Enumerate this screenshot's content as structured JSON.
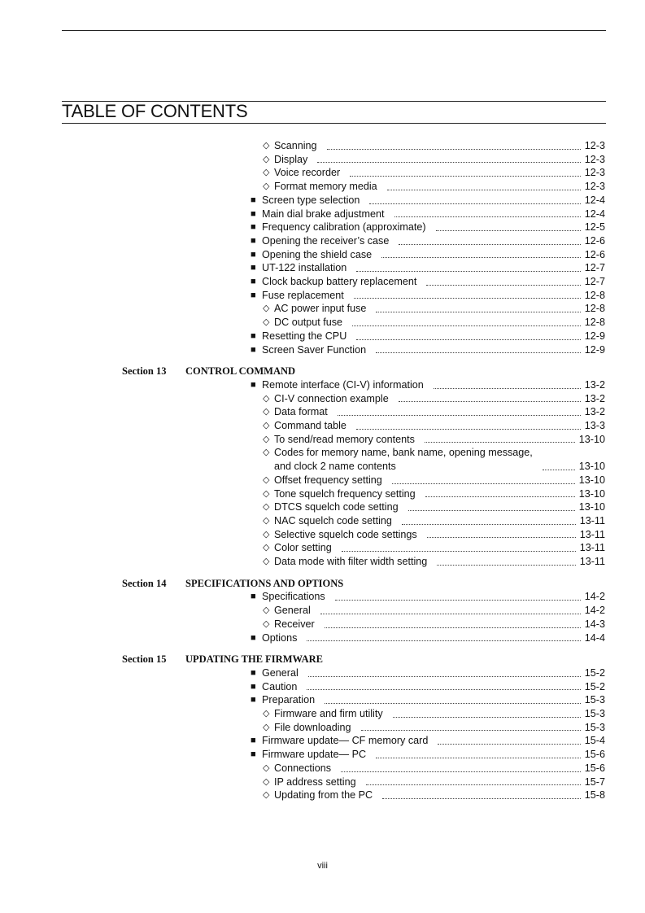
{
  "header": {
    "title": "TABLE OF CONTENTS"
  },
  "groups": [
    {
      "entries": [
        {
          "bullet": "◇",
          "text": "Scanning",
          "page": "12-3"
        },
        {
          "bullet": "◇",
          "text": "Display",
          "page": "12-3"
        },
        {
          "bullet": "◇",
          "text": "Voice recorder",
          "page": "12-3"
        },
        {
          "bullet": "◇",
          "text": "Format memory media",
          "page": "12-3"
        },
        {
          "bullet": "■",
          "text": "Screen type selection",
          "page": "12-4"
        },
        {
          "bullet": "■",
          "text": "Main dial brake adjustment",
          "page": "12-4"
        },
        {
          "bullet": "■",
          "text": "Frequency calibration (approximate)",
          "page": "12-5"
        },
        {
          "bullet": "■",
          "text": "Opening the receiver’s case",
          "page": "12-6"
        },
        {
          "bullet": "■",
          "text": "Opening the shield case",
          "page": "12-6"
        },
        {
          "bullet": "■",
          "text": "UT-122 installation",
          "page": "12-7"
        },
        {
          "bullet": "■",
          "text": "Clock backup battery replacement",
          "page": "12-7"
        },
        {
          "bullet": "■",
          "text": "Fuse replacement",
          "page": "12-8"
        },
        {
          "bullet": "◇",
          "text": "AC power input fuse",
          "page": "12-8"
        },
        {
          "bullet": "◇",
          "text": "DC output fuse",
          "page": "12-8"
        },
        {
          "bullet": "■",
          "text": "Resetting the CPU",
          "page": "12-9"
        },
        {
          "bullet": "■",
          "text": "Screen Saver Function",
          "page": "12-9"
        }
      ]
    },
    {
      "section": "Section 13",
      "heading": "CONTROL COMMAND",
      "entries": [
        {
          "bullet": "■",
          "text": "Remote interface (CI-V) information",
          "page": "13-2"
        },
        {
          "bullet": "◇",
          "text": "CI-V connection example",
          "page": "13-2"
        },
        {
          "bullet": "◇",
          "text": "Data format",
          "page": "13-2"
        },
        {
          "bullet": "◇",
          "text": "Command table",
          "page": "13-3"
        },
        {
          "bullet": "◇",
          "text": "To send/read memory contents",
          "page": "13-10"
        },
        {
          "bullet": "◇",
          "text": "Codes for memory name, bank name, opening message,\nand clock 2 name contents",
          "page": "13-10"
        },
        {
          "bullet": "◇",
          "text": "Offset frequency setting",
          "page": "13-10"
        },
        {
          "bullet": "◇",
          "text": "Tone squelch frequency setting",
          "page": "13-10"
        },
        {
          "bullet": "◇",
          "text": "DTCS squelch code setting",
          "page": "13-10"
        },
        {
          "bullet": "◇",
          "text": "NAC squelch code setting",
          "page": "13-11"
        },
        {
          "bullet": "◇",
          "text": "Selective squelch code settings",
          "page": "13-11"
        },
        {
          "bullet": "◇",
          "text": "Color setting",
          "page": "13-11"
        },
        {
          "bullet": "◇",
          "text": "Data mode with filter width setting",
          "page": "13-11"
        }
      ]
    },
    {
      "section": "Section 14",
      "heading": "SPECIFICATIONS AND OPTIONS",
      "entries": [
        {
          "bullet": "■",
          "text": "Specifications",
          "page": "14-2"
        },
        {
          "bullet": "◇",
          "text": "General",
          "page": "14-2"
        },
        {
          "bullet": "◇",
          "text": "Receiver",
          "page": "14-3"
        },
        {
          "bullet": "■",
          "text": "Options",
          "page": "14-4"
        }
      ]
    },
    {
      "section": "Section 15",
      "heading": "UPDATING THE FIRMWARE",
      "entries": [
        {
          "bullet": "■",
          "text": "General",
          "page": "15-2"
        },
        {
          "bullet": "■",
          "text": "Caution",
          "page": "15-2"
        },
        {
          "bullet": "■",
          "text": "Preparation",
          "page": "15-3"
        },
        {
          "bullet": "◇",
          "text": "Firmware and firm utility",
          "page": "15-3"
        },
        {
          "bullet": "◇",
          "text": "File downloading",
          "page": "15-3"
        },
        {
          "bullet": "■",
          "text": "Firmware update— CF memory card",
          "page": "15-4"
        },
        {
          "bullet": "■",
          "text": "Firmware update— PC",
          "page": "15-6"
        },
        {
          "bullet": "◇",
          "text": "Connections",
          "page": "15-6"
        },
        {
          "bullet": "◇",
          "text": "IP address setting",
          "page": "15-7"
        },
        {
          "bullet": "◇",
          "text": "Updating from the PC",
          "page": "15-8"
        }
      ]
    }
  ],
  "footer": {
    "page": "viii"
  }
}
